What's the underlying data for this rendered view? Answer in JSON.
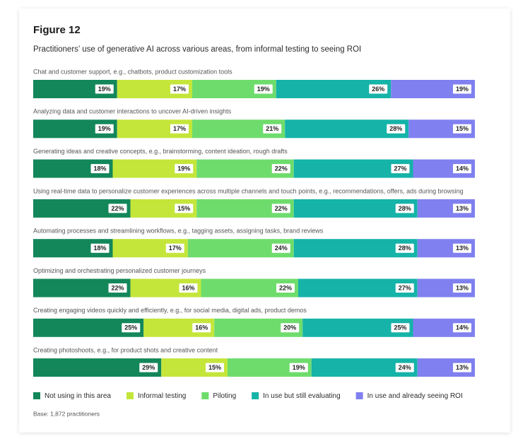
{
  "chart_data": {
    "type": "stacked-bar-horizontal",
    "title": "Figure 12",
    "subtitle": "Practitioners’ use of generative AI across various areas, from informal testing to seeing ROI",
    "categories": [
      "Chat and customer support, e.g., chatbots, product customization tools",
      "Analyzing data and customer interactions to uncover AI-driven insights",
      "Generating ideas and creative concepts, e.g., brainstorming, content ideation, rough drafts",
      "Using real-time data to personalize customer experiences across multiple channels and touch points, e.g., recommendations, offers, ads during browsing",
      "Automating processes and streamlining workflows, e.g., tagging assets, assigning tasks, brand reviews",
      "Optimizing and orchestrating personalized customer journeys",
      "Creating engaging videos quickly and efficiently, e.g., for social media, digital ads, product demos",
      "Creating photoshoots, e.g., for product shots and creative content"
    ],
    "series": [
      {
        "name": "Not using in this area",
        "color": "#13875a",
        "values": [
          19,
          19,
          18,
          22,
          18,
          22,
          25,
          29
        ],
        "value_labels": [
          "19%",
          "19%",
          "18%",
          "22%",
          "18%",
          "22%",
          "25%",
          "29%"
        ]
      },
      {
        "name": "Informal testing",
        "color": "#c4e63b",
        "values": [
          17,
          17,
          19,
          15,
          17,
          16,
          16,
          15
        ],
        "value_labels": [
          "17%",
          "17%",
          "19%",
          "15%",
          "17%",
          "16%",
          "16%",
          "15%"
        ]
      },
      {
        "name": "Piloting",
        "color": "#6edc6c",
        "values": [
          19,
          21,
          22,
          22,
          24,
          22,
          20,
          19
        ],
        "value_labels": [
          "19%",
          "21%",
          "22%",
          "22%",
          "24%",
          "22%",
          "20%",
          "19%"
        ]
      },
      {
        "name": "In use but still evaluating",
        "color": "#15b3a8",
        "values": [
          26,
          28,
          27,
          28,
          28,
          27,
          25,
          24
        ],
        "value_labels": [
          "26%",
          "28%",
          "27%",
          "28%",
          "28%",
          "27%",
          "25%",
          "24%"
        ]
      },
      {
        "name": "In use and already seeing ROI",
        "color": "#8080f0",
        "values": [
          19,
          15,
          14,
          13,
          13,
          13,
          14,
          13
        ],
        "value_labels": [
          "19%",
          "15%",
          "14%",
          "13%",
          "13%",
          "13%",
          "14%",
          "13%"
        ]
      }
    ],
    "xlim": [
      0,
      100
    ],
    "footnote": "Base: 1,872 practitioners"
  }
}
